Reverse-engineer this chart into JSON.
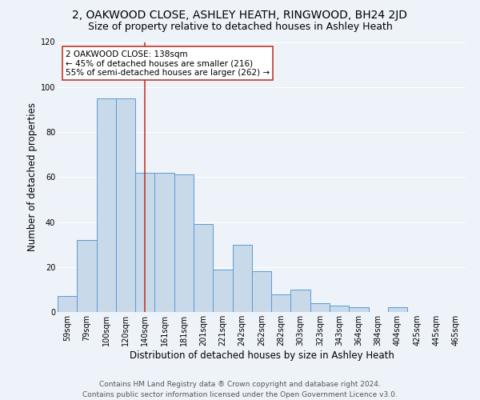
{
  "title1": "2, OAKWOOD CLOSE, ASHLEY HEATH, RINGWOOD, BH24 2JD",
  "title2": "Size of property relative to detached houses in Ashley Heath",
  "xlabel": "Distribution of detached houses by size in Ashley Heath",
  "ylabel": "Number of detached properties",
  "footer1": "Contains HM Land Registry data ® Crown copyright and database right 2024.",
  "footer2": "Contains public sector information licensed under the Open Government Licence v3.0.",
  "annotation_line1": "2 OAKWOOD CLOSE: 138sqm",
  "annotation_line2": "← 45% of detached houses are smaller (216)",
  "annotation_line3": "55% of semi-detached houses are larger (262) →",
  "bar_labels": [
    "59sqm",
    "79sqm",
    "100sqm",
    "120sqm",
    "140sqm",
    "161sqm",
    "181sqm",
    "201sqm",
    "221sqm",
    "242sqm",
    "262sqm",
    "282sqm",
    "303sqm",
    "323sqm",
    "343sqm",
    "364sqm",
    "384sqm",
    "404sqm",
    "425sqm",
    "445sqm",
    "465sqm"
  ],
  "bar_values": [
    7,
    32,
    95,
    95,
    62,
    62,
    61,
    39,
    19,
    30,
    18,
    8,
    10,
    4,
    3,
    2,
    0,
    2,
    0,
    0,
    0
  ],
  "bar_color": "#c8d9ea",
  "bar_edge_color": "#5b9bd5",
  "vline_x": 4,
  "vline_color": "#c0392b",
  "ylim": [
    0,
    120
  ],
  "yticks": [
    0,
    20,
    40,
    60,
    80,
    100,
    120
  ],
  "background_color": "#eef3fa",
  "grid_color": "#ffffff",
  "annotation_box_color": "#ffffff",
  "annotation_box_edge": "#c0392b",
  "title1_fontsize": 10,
  "title2_fontsize": 9,
  "axis_label_fontsize": 8.5,
  "tick_fontsize": 7,
  "annotation_fontsize": 7.5,
  "footer_fontsize": 6.5
}
